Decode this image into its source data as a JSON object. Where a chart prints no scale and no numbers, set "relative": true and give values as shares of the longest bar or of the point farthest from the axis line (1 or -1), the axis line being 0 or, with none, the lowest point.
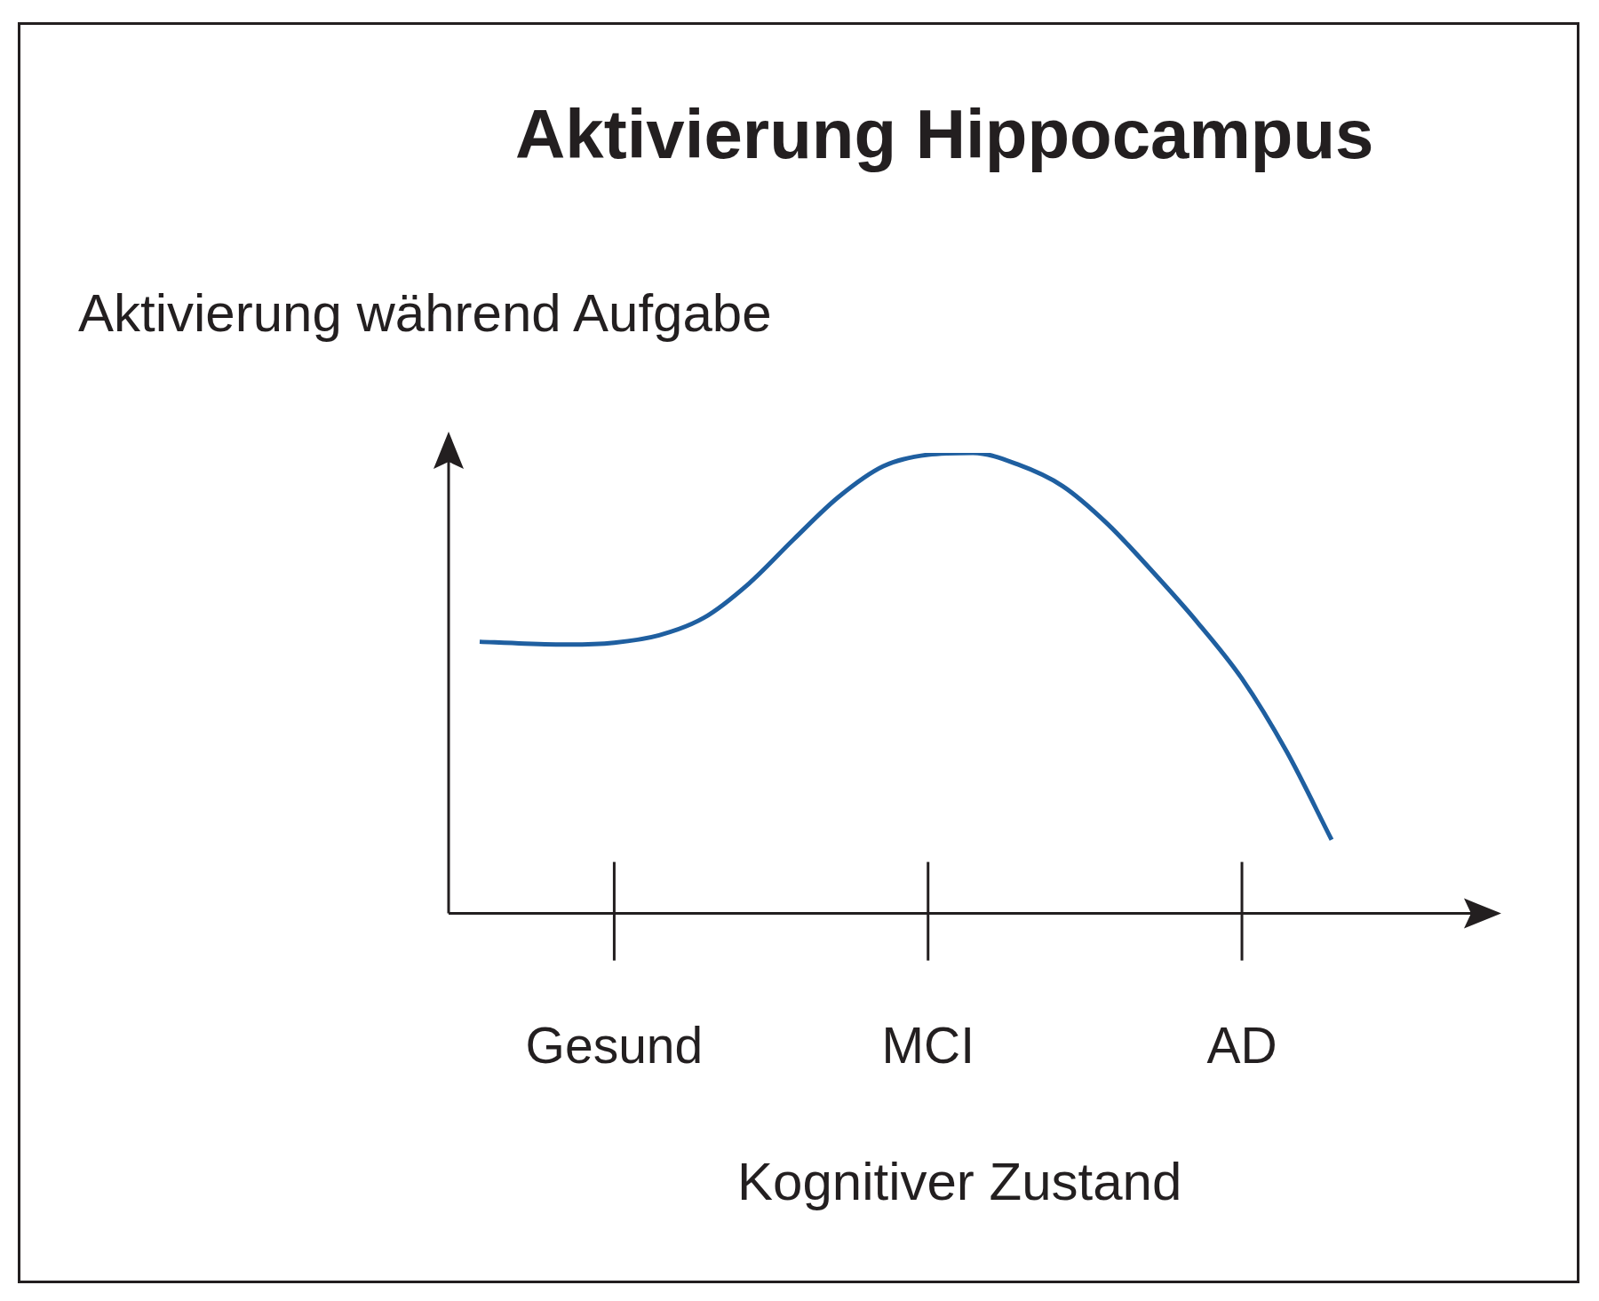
{
  "chart_data": {
    "type": "line",
    "title": "Aktivierung Hippocampus",
    "ylabel": "Aktivierung während Aufgabe",
    "xlabel": "Kognitiver Zustand",
    "relative": true,
    "categories": [
      null,
      null,
      null,
      "Gesund",
      null,
      null,
      null,
      null,
      null,
      null,
      "MCI",
      null,
      null,
      null,
      null,
      null,
      null,
      "AD",
      null,
      null
    ],
    "color": "#1f5fa0",
    "values": [
      0.59,
      0.586,
      0.584,
      0.588,
      0.604,
      0.642,
      0.716,
      0.812,
      0.904,
      0.971,
      0.996,
      1.0,
      0.975,
      0.928,
      0.846,
      0.743,
      0.633,
      0.51,
      0.351,
      0.16
    ]
  }
}
